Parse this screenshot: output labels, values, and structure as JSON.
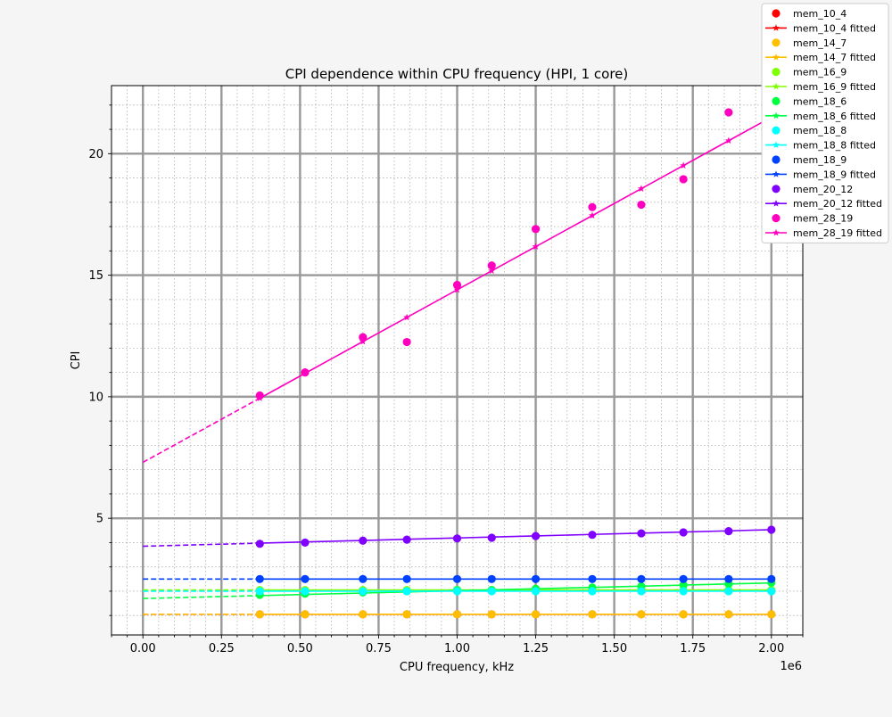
{
  "chart_data": {
    "type": "line",
    "title": "CPI dependence within CPU frequency (HPI, 1 core)",
    "xlabel": "CPU frequency, kHz",
    "ylabel": "CPI",
    "x_offset_label": "1e6",
    "xlim": [
      -100000,
      2100000
    ],
    "ylim": [
      0.2,
      22.8
    ],
    "xticks": [
      0,
      250000,
      500000,
      750000,
      1000000,
      1250000,
      1500000,
      1750000,
      2000000
    ],
    "xtick_labels": [
      "0.00",
      "0.25",
      "0.50",
      "0.75",
      "1.00",
      "1.25",
      "1.50",
      "1.75",
      "2.00"
    ],
    "yticks": [
      5,
      10,
      15,
      20
    ],
    "ytick_labels": [
      "5",
      "10",
      "15",
      "20"
    ],
    "grid": true,
    "legend_position": "top-right",
    "x": [
      372000,
      516000,
      700000,
      840000,
      1000000,
      1110000,
      1250000,
      1430000,
      1586000,
      1720000,
      1864000,
      2000000
    ],
    "series": [
      {
        "name": "mem_10_4",
        "fitted_name": "mem_10_4 fitted",
        "color": "#ff0000",
        "values": [
          1.05,
          1.05,
          1.05,
          1.05,
          1.05,
          1.05,
          1.05,
          1.05,
          1.05,
          1.05,
          1.05,
          1.05
        ],
        "fit": {
          "intercept": 1.05,
          "slope": 0.0
        }
      },
      {
        "name": "mem_14_7",
        "fitted_name": "mem_14_7 fitted",
        "color": "#ffbf00",
        "values": [
          1.05,
          1.05,
          1.05,
          1.05,
          1.05,
          1.05,
          1.05,
          1.05,
          1.05,
          1.05,
          1.05,
          1.05
        ],
        "fit": {
          "intercept": 1.05,
          "slope": 0.0
        }
      },
      {
        "name": "mem_16_9",
        "fitted_name": "mem_16_9 fitted",
        "color": "#80ff00",
        "values": [
          2.05,
          2.05,
          2.05,
          2.05,
          2.05,
          2.05,
          2.05,
          2.05,
          2.05,
          2.05,
          2.05,
          2.05
        ],
        "fit": {
          "intercept": 2.05,
          "slope": 0.0
        }
      },
      {
        "name": "mem_18_6",
        "fitted_name": "mem_18_6 fitted",
        "color": "#00ff40",
        "values": [
          1.85,
          1.9,
          1.95,
          2.0,
          2.05,
          2.05,
          2.1,
          2.15,
          2.2,
          2.25,
          2.3,
          2.35
        ],
        "fit": {
          "intercept": 1.7,
          "slope": 3.2e-07
        }
      },
      {
        "name": "mem_18_8",
        "fitted_name": "mem_18_8 fitted",
        "color": "#00ffff",
        "values": [
          2.0,
          2.0,
          2.0,
          2.0,
          2.0,
          2.0,
          2.0,
          2.0,
          2.0,
          2.0,
          2.0,
          2.0
        ],
        "fit": {
          "intercept": 2.0,
          "slope": 0.0
        }
      },
      {
        "name": "mem_18_9",
        "fitted_name": "mem_18_9 fitted",
        "color": "#0040ff",
        "values": [
          2.5,
          2.5,
          2.5,
          2.5,
          2.5,
          2.5,
          2.5,
          2.5,
          2.5,
          2.5,
          2.5,
          2.5
        ],
        "fit": {
          "intercept": 2.5,
          "slope": 0.0
        }
      },
      {
        "name": "mem_20_12",
        "fitted_name": "mem_20_12 fitted",
        "color": "#8000ff",
        "values": [
          3.95,
          4.0,
          4.08,
          4.12,
          4.17,
          4.2,
          4.27,
          4.32,
          4.38,
          4.42,
          4.47,
          4.53
        ],
        "fit": {
          "intercept": 3.85,
          "slope": 3.4e-07
        }
      },
      {
        "name": "mem_28_19",
        "fitted_name": "mem_28_19 fitted",
        "color": "#ff00bf",
        "values": [
          10.05,
          11.0,
          12.45,
          12.25,
          14.6,
          15.4,
          16.9,
          17.8,
          17.9,
          18.95,
          21.7,
          21.15
        ],
        "fit": {
          "intercept": 7.3,
          "slope": 7.1e-06
        }
      }
    ]
  }
}
